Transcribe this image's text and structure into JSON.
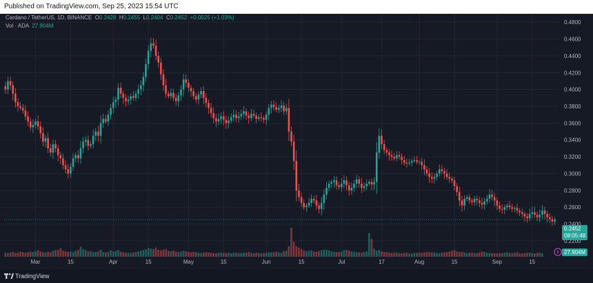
{
  "header": {
    "published": "Published on TradingView.com, Sep 25, 2023 15:54 UTC"
  },
  "legend": {
    "symbol": "Cardano / TetherUS, 1D, BINANCE",
    "o_label": "O",
    "o": "0.2428",
    "h_label": "H",
    "h": "0.2455",
    "l_label": "L",
    "l": "0.2404",
    "c_label": "C",
    "c": "0.2452",
    "change": "+0.0025 (+1.03%)",
    "vol_label": "Vol · ADA",
    "vol": "27.904M"
  },
  "price_tags": {
    "last_price": "0.2452",
    "countdown": "08:05:48",
    "last_volume": "27.904M"
  },
  "footer": {
    "brand": "TradingView"
  },
  "colors": {
    "up": "#26a69a",
    "down": "#ef5350",
    "bg": "#161a25",
    "grid": "#232632",
    "text": "#b2b5be"
  },
  "chart_data": {
    "type": "candlestick",
    "ylim": [
      0.215,
      0.49
    ],
    "y_ticks": [
      "0.2200",
      "0.2400",
      "0.2600",
      "0.2800",
      "0.3000",
      "0.3200",
      "0.3400",
      "0.3600",
      "0.3800",
      "0.4000",
      "0.4200",
      "0.4400",
      "0.4600",
      "0.4800"
    ],
    "y_tick_values": [
      0.22,
      0.24,
      0.26,
      0.28,
      0.3,
      0.32,
      0.34,
      0.36,
      0.38,
      0.4,
      0.42,
      0.44,
      0.46,
      0.48
    ],
    "x_ticks": [
      {
        "label": "Mar",
        "date": "2023-03-01"
      },
      {
        "label": "15",
        "date": "2023-03-15"
      },
      {
        "label": "Apr",
        "date": "2023-04-01"
      },
      {
        "label": "15",
        "date": "2023-04-15"
      },
      {
        "label": "May",
        "date": "2023-05-01"
      },
      {
        "label": "15",
        "date": "2023-05-15"
      },
      {
        "label": "Jun",
        "date": "2023-06-01"
      },
      {
        "label": "15",
        "date": "2023-06-15"
      },
      {
        "label": "Jul",
        "date": "2023-07-01"
      },
      {
        "label": "17",
        "date": "2023-07-17"
      },
      {
        "label": "Aug",
        "date": "2023-08-01"
      },
      {
        "label": "15",
        "date": "2023-08-15"
      },
      {
        "label": "Sep",
        "date": "2023-09-01"
      },
      {
        "label": "15",
        "date": "2023-09-15"
      }
    ],
    "date_range": [
      "2023-02-17",
      "2023-09-25"
    ],
    "close": [
      0.4,
      0.41,
      0.405,
      0.395,
      0.385,
      0.38,
      0.378,
      0.375,
      0.368,
      0.362,
      0.355,
      0.358,
      0.362,
      0.356,
      0.348,
      0.338,
      0.342,
      0.33,
      0.325,
      0.335,
      0.33,
      0.322,
      0.318,
      0.31,
      0.305,
      0.3,
      0.308,
      0.318,
      0.322,
      0.318,
      0.33,
      0.338,
      0.34,
      0.333,
      0.335,
      0.345,
      0.35,
      0.345,
      0.36,
      0.365,
      0.362,
      0.37,
      0.378,
      0.385,
      0.388,
      0.402,
      0.395,
      0.39,
      0.386,
      0.388,
      0.392,
      0.39,
      0.395,
      0.4,
      0.405,
      0.415,
      0.43,
      0.446,
      0.455,
      0.452,
      0.44,
      0.432,
      0.418,
      0.405,
      0.395,
      0.392,
      0.396,
      0.39,
      0.386,
      0.393,
      0.4,
      0.412,
      0.408,
      0.402,
      0.398,
      0.392,
      0.388,
      0.394,
      0.398,
      0.39,
      0.384,
      0.378,
      0.372,
      0.366,
      0.362,
      0.365,
      0.368,
      0.364,
      0.36,
      0.363,
      0.367,
      0.37,
      0.366,
      0.368,
      0.371,
      0.374,
      0.369,
      0.366,
      0.371,
      0.369,
      0.365,
      0.367,
      0.366,
      0.364,
      0.37,
      0.378,
      0.382,
      0.379,
      0.376,
      0.378,
      0.381,
      0.374,
      0.378,
      0.35,
      0.338,
      0.315,
      0.28,
      0.272,
      0.265,
      0.26,
      0.262,
      0.265,
      0.27,
      0.268,
      0.262,
      0.258,
      0.265,
      0.275,
      0.283,
      0.288,
      0.29,
      0.292,
      0.286,
      0.284,
      0.288,
      0.292,
      0.286,
      0.28,
      0.283,
      0.288,
      0.293,
      0.288,
      0.283,
      0.285,
      0.288,
      0.29,
      0.287,
      0.29,
      0.325,
      0.345,
      0.335,
      0.328,
      0.325,
      0.322,
      0.32,
      0.318,
      0.322,
      0.32,
      0.316,
      0.313,
      0.312,
      0.313,
      0.315,
      0.316,
      0.314,
      0.314,
      0.31,
      0.305,
      0.3,
      0.296,
      0.294,
      0.296,
      0.3,
      0.305,
      0.303,
      0.3,
      0.296,
      0.294,
      0.292,
      0.285,
      0.278,
      0.268,
      0.262,
      0.27,
      0.272,
      0.268,
      0.266,
      0.27,
      0.268,
      0.265,
      0.263,
      0.267,
      0.27,
      0.275,
      0.272,
      0.268,
      0.262,
      0.258,
      0.257,
      0.26,
      0.262,
      0.26,
      0.258,
      0.259,
      0.256,
      0.254,
      0.252,
      0.249,
      0.247,
      0.252,
      0.254,
      0.251,
      0.248,
      0.251,
      0.256,
      0.252,
      0.248,
      0.246,
      0.243,
      0.2452
    ],
    "volume_relative": [
      0.42,
      0.38,
      0.45,
      0.5,
      0.4,
      0.44,
      0.52,
      0.48,
      0.41,
      0.46,
      0.53,
      0.49,
      0.58,
      0.7,
      0.55,
      0.48,
      0.44,
      0.52,
      0.46,
      0.62,
      0.68,
      0.73,
      0.88,
      0.64,
      0.58,
      0.52,
      0.55,
      0.48,
      0.62,
      0.72,
      1.05,
      0.8,
      0.68,
      0.55,
      0.6,
      0.48,
      0.5,
      0.55,
      0.72,
      0.48,
      0.45,
      0.5,
      0.65,
      0.55,
      0.6,
      0.7,
      0.52,
      0.48,
      0.44,
      0.42,
      0.4,
      0.45,
      0.5,
      0.56,
      0.62,
      0.7,
      0.78,
      0.92,
      0.85,
      0.8,
      0.95,
      0.72,
      0.68,
      0.74,
      0.8,
      0.62,
      0.58,
      0.66,
      0.52,
      0.48,
      0.55,
      0.62,
      0.58,
      0.5,
      0.45,
      0.52,
      0.48,
      0.42,
      0.4,
      0.44,
      0.48,
      0.46,
      0.42,
      0.38,
      0.36,
      0.42,
      0.46,
      0.4,
      0.38,
      0.42,
      0.36,
      0.44,
      0.42,
      0.4,
      0.38,
      0.44,
      0.42,
      0.48,
      0.4,
      0.36,
      0.42,
      0.4,
      0.35,
      0.38,
      0.42,
      0.44,
      0.46,
      0.48,
      0.52,
      0.45,
      0.42,
      0.58,
      0.62,
      1.08,
      3.0,
      1.55,
      1.1,
      0.95,
      0.8,
      0.66,
      0.58,
      0.62,
      0.68,
      0.55,
      0.5,
      0.6,
      0.68,
      0.74,
      0.72,
      0.66,
      0.55,
      0.52,
      0.48,
      0.5,
      0.52,
      0.68,
      0.72,
      0.64,
      0.55,
      0.52,
      0.48,
      0.45,
      0.42,
      0.5,
      0.55,
      2.45,
      1.85,
      0.85,
      0.62,
      0.7,
      0.55,
      0.5,
      0.48,
      0.44,
      0.4,
      0.45,
      0.42,
      0.38,
      0.36,
      0.4,
      0.42,
      0.36,
      0.34,
      0.38,
      0.42,
      0.44,
      0.4,
      0.45,
      0.5,
      0.48,
      0.46,
      0.44,
      0.4,
      0.38,
      0.42,
      0.45,
      0.48,
      0.52,
      0.62,
      0.7,
      0.55,
      0.48,
      0.5,
      0.45,
      0.4,
      0.42,
      0.44,
      0.4,
      0.38,
      0.45,
      0.55,
      0.5,
      0.42,
      0.4,
      0.38,
      0.36,
      0.34,
      0.38,
      0.36,
      0.42,
      0.46,
      0.4,
      0.38,
      0.42,
      0.48,
      0.36,
      0.34,
      0.38,
      0.4,
      0.44,
      0.38,
      0.36,
      0.4,
      0.42,
      0.35
    ]
  }
}
